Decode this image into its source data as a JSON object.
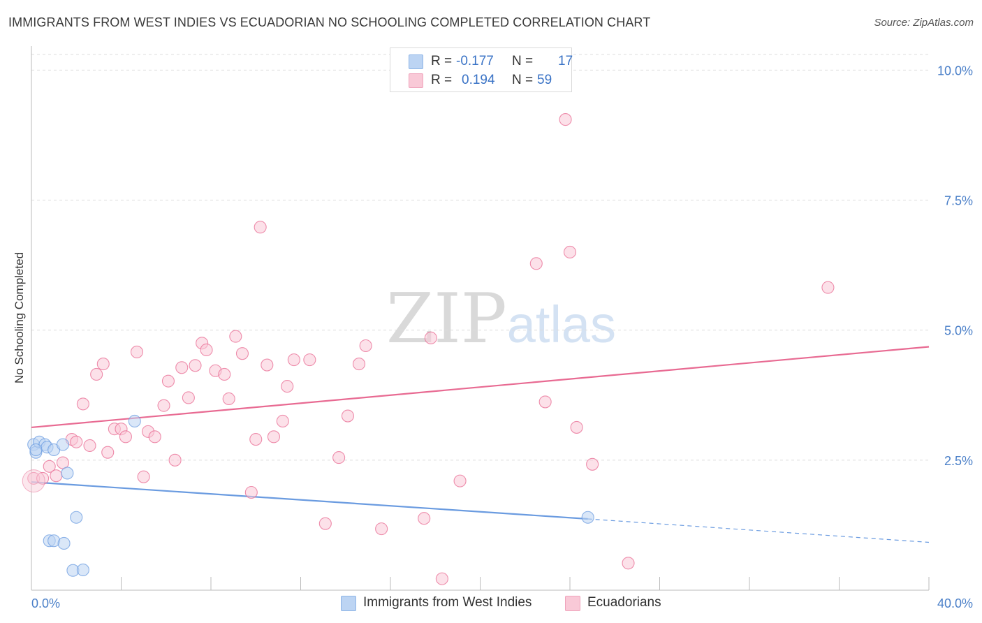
{
  "header": {
    "title": "IMMIGRANTS FROM WEST INDIES VS ECUADORIAN NO SCHOOLING COMPLETED CORRELATION CHART",
    "source": "Source: ZipAtlas.com"
  },
  "watermark": {
    "zip": "ZIP",
    "atlas": "atlas"
  },
  "legend": {
    "rows": [
      {
        "r_label": "R =",
        "r_value": "-0.177",
        "n_label": "N =",
        "n_value": "17",
        "color": "#a9c8f0"
      },
      {
        "r_label": "R =",
        "r_value": "0.194",
        "n_label": "N =",
        "n_value": "59",
        "color": "#f7b8cb"
      }
    ]
  },
  "bottom_legend": {
    "series1": "Immigrants from West Indies",
    "series2": "Ecuadorians"
  },
  "chart_data": {
    "type": "scatter",
    "title": "IMMIGRANTS FROM WEST INDIES VS ECUADORIAN NO SCHOOLING COMPLETED CORRELATION CHART",
    "xlabel": "",
    "ylabel": "No Schooling Completed",
    "xlim": [
      0,
      40
    ],
    "ylim": [
      0,
      10.3
    ],
    "x_tick_labels": [
      "0.0%",
      "40.0%"
    ],
    "y_tick_labels": [
      "2.5%",
      "5.0%",
      "7.5%",
      "10.0%"
    ],
    "y_ticks": [
      2.5,
      5.0,
      7.5,
      10.0
    ],
    "grid": "horizontal dashed",
    "legend_position": "top-center",
    "series": [
      {
        "name": "Immigrants from West Indies",
        "color": "#6a9be0",
        "fill": "#bcd4f3",
        "points": [
          [
            0.1,
            2.8
          ],
          [
            0.2,
            2.65
          ],
          [
            0.35,
            2.85
          ],
          [
            0.6,
            2.8
          ],
          [
            0.7,
            2.75
          ],
          [
            1.0,
            2.7
          ],
          [
            1.4,
            2.8
          ],
          [
            1.6,
            2.25
          ],
          [
            4.6,
            3.25
          ],
          [
            2.0,
            1.4
          ],
          [
            0.8,
            0.95
          ],
          [
            1.0,
            0.95
          ],
          [
            1.45,
            0.9
          ],
          [
            1.85,
            0.38
          ],
          [
            2.3,
            0.39
          ],
          [
            24.8,
            1.4
          ],
          [
            0.2,
            2.7
          ]
        ],
        "trend": {
          "x": [
            0,
            24.8
          ],
          "y": [
            2.08,
            1.37
          ],
          "dashed_to": [
            40,
            0.92
          ]
        }
      },
      {
        "name": "Ecuadorians",
        "color": "#e86a92",
        "fill": "#f9c9d7",
        "points": [
          [
            0.1,
            2.15
          ],
          [
            0.5,
            2.15
          ],
          [
            0.8,
            2.38
          ],
          [
            1.1,
            2.2
          ],
          [
            1.4,
            2.45
          ],
          [
            1.8,
            2.9
          ],
          [
            2.0,
            2.85
          ],
          [
            2.3,
            3.58
          ],
          [
            2.6,
            2.78
          ],
          [
            2.9,
            4.15
          ],
          [
            3.2,
            4.35
          ],
          [
            3.4,
            2.65
          ],
          [
            3.7,
            3.1
          ],
          [
            4.0,
            3.1
          ],
          [
            4.2,
            2.95
          ],
          [
            4.7,
            4.58
          ],
          [
            5.0,
            2.18
          ],
          [
            5.2,
            3.05
          ],
          [
            5.5,
            2.95
          ],
          [
            5.9,
            3.55
          ],
          [
            6.1,
            4.02
          ],
          [
            6.4,
            2.5
          ],
          [
            6.7,
            4.28
          ],
          [
            7.0,
            3.7
          ],
          [
            7.3,
            4.32
          ],
          [
            7.6,
            4.75
          ],
          [
            7.8,
            4.62
          ],
          [
            8.2,
            4.22
          ],
          [
            8.6,
            4.15
          ],
          [
            8.8,
            3.68
          ],
          [
            9.1,
            4.88
          ],
          [
            9.4,
            4.55
          ],
          [
            9.8,
            1.88
          ],
          [
            10.0,
            2.9
          ],
          [
            10.2,
            6.98
          ],
          [
            10.5,
            4.33
          ],
          [
            10.8,
            2.95
          ],
          [
            11.2,
            3.25
          ],
          [
            11.4,
            3.92
          ],
          [
            11.7,
            4.43
          ],
          [
            12.4,
            4.43
          ],
          [
            13.1,
            1.28
          ],
          [
            13.7,
            2.55
          ],
          [
            14.1,
            3.35
          ],
          [
            14.6,
            4.35
          ],
          [
            14.9,
            4.7
          ],
          [
            15.6,
            1.18
          ],
          [
            17.5,
            1.38
          ],
          [
            17.8,
            4.85
          ],
          [
            18.3,
            0.22
          ],
          [
            19.1,
            2.1
          ],
          [
            22.5,
            6.28
          ],
          [
            22.9,
            3.62
          ],
          [
            23.8,
            9.05
          ],
          [
            24.0,
            6.5
          ],
          [
            24.3,
            3.13
          ],
          [
            25.0,
            2.42
          ],
          [
            26.6,
            0.52
          ],
          [
            35.5,
            5.82
          ]
        ],
        "trend": {
          "x": [
            0,
            40
          ],
          "y": [
            3.13,
            4.68
          ]
        }
      }
    ]
  }
}
